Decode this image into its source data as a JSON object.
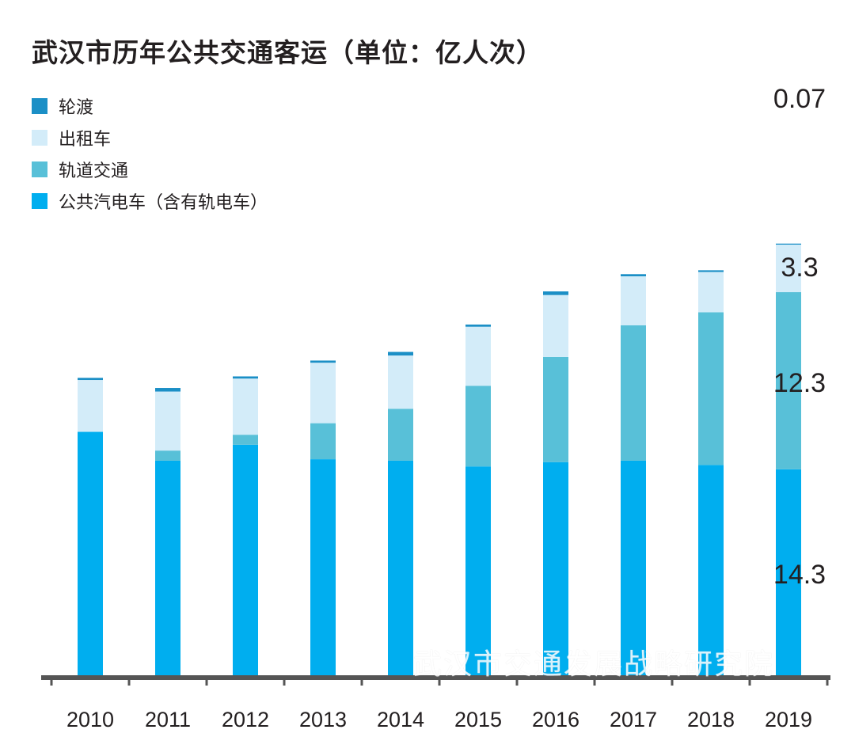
{
  "chart_data": {
    "type": "bar",
    "stacked": true,
    "title": "武汉市历年公共交通客运（单位：亿人次）",
    "categories": [
      "2010",
      "2011",
      "2012",
      "2013",
      "2014",
      "2015",
      "2016",
      "2017",
      "2018",
      "2019"
    ],
    "series": [
      {
        "name": "公共汽电车（含有轨电车）",
        "color": "#00aeef",
        "values": [
          16.9,
          14.9,
          16.0,
          15.0,
          14.9,
          14.5,
          14.8,
          14.9,
          14.6,
          14.3
        ]
      },
      {
        "name": "轨道交通",
        "color": "#58c0d8",
        "values": [
          0.0,
          0.7,
          0.7,
          2.5,
          3.6,
          5.6,
          7.3,
          9.4,
          10.6,
          12.3
        ]
      },
      {
        "name": "出租车",
        "color": "#d3ecf9",
        "values": [
          3.6,
          4.1,
          3.9,
          4.2,
          3.7,
          4.1,
          4.3,
          3.4,
          2.8,
          3.3
        ]
      },
      {
        "name": "轮渡",
        "color": "#1b8fc6",
        "values": [
          0.15,
          0.25,
          0.15,
          0.15,
          0.25,
          0.15,
          0.25,
          0.15,
          0.12,
          0.07
        ]
      }
    ],
    "data_labels": {
      "category": "2019",
      "values": [
        "14.3",
        "12.3",
        "3.3",
        "0.07"
      ]
    },
    "legend_position": "top-left",
    "grid": false,
    "ylim": [
      0,
      38.2
    ]
  },
  "legend": {
    "ferry": "轮渡",
    "taxi": "出租车",
    "rail": "轨道交通",
    "bus": "公共汽电车（含有轨电车）"
  },
  "axis_color": "#555555",
  "watermark": "武汉市交通发展战略研究院"
}
